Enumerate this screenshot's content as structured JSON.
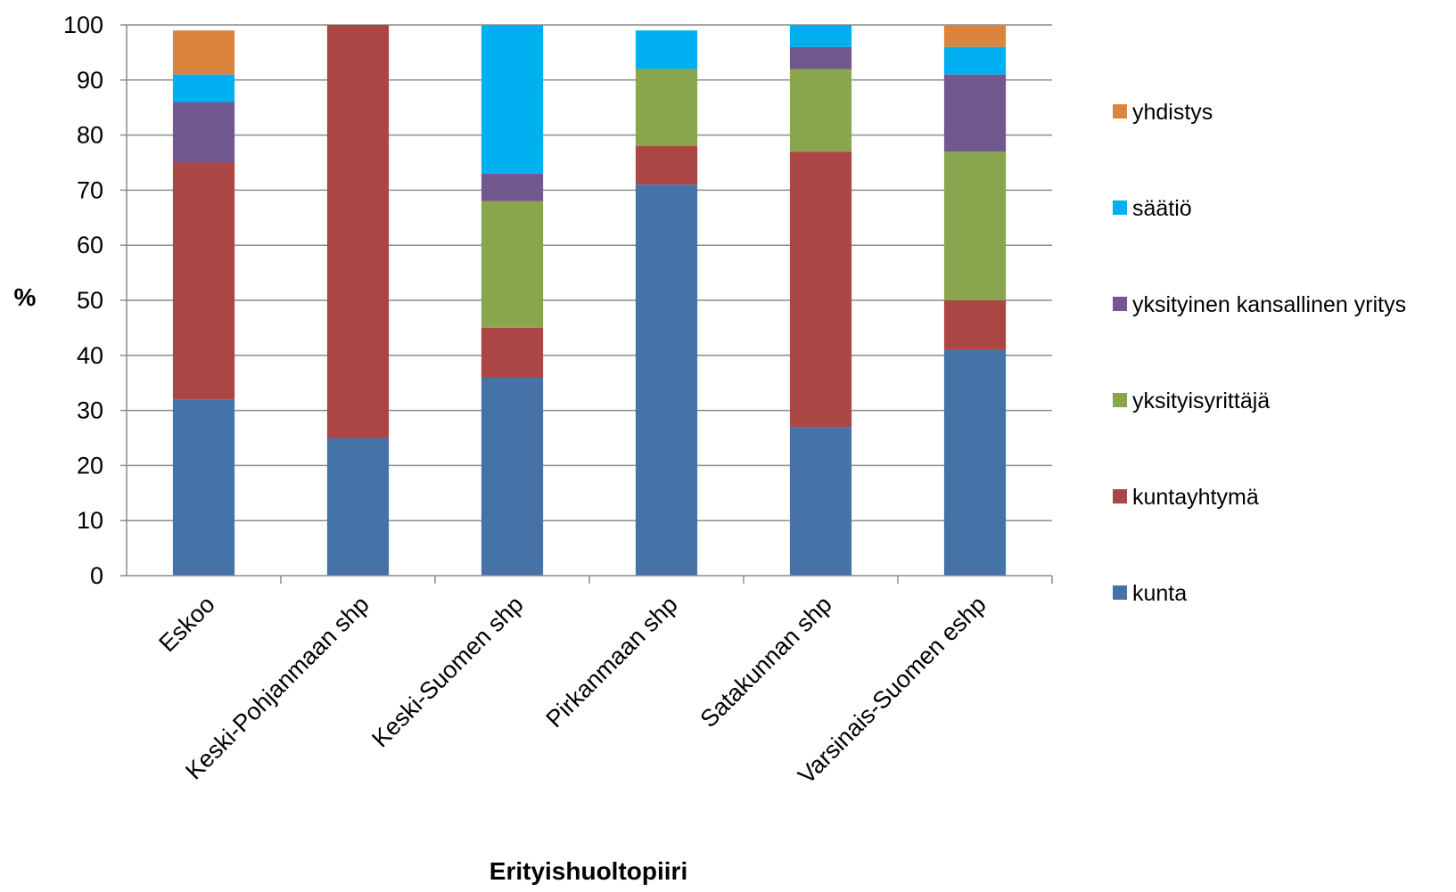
{
  "chart_data": {
    "type": "bar",
    "stacked": true,
    "xlabel": "Erityishuoltopiiri",
    "ylabel": "%",
    "ylim": [
      0,
      100
    ],
    "yticks": [
      "0",
      "10",
      "20",
      "30",
      "40",
      "50",
      "60",
      "70",
      "80",
      "90",
      "100"
    ],
    "grid": true,
    "legend_position": "right",
    "categories": [
      "Eskoo",
      "Keski-Pohjanmaan shp",
      "Keski-Suomen shp",
      "Pirkanmaan shp",
      "Satakunnan shp",
      "Varsinais-Suomen eshp"
    ],
    "series": [
      {
        "name": "kunta",
        "color": "#4572A7",
        "values": [
          32,
          25,
          36,
          71,
          27,
          41
        ]
      },
      {
        "name": "kuntayhtymä",
        "color": "#AA4643",
        "values": [
          43,
          75,
          9,
          7,
          50,
          9
        ]
      },
      {
        "name": "yksityisyrittäjä",
        "color": "#89A54E",
        "values": [
          0,
          0,
          23,
          14,
          15,
          27
        ]
      },
      {
        "name": "yksityinen kansallinen yritys",
        "color": "#71588F",
        "values": [
          11,
          0,
          5,
          0,
          4,
          14
        ]
      },
      {
        "name": "säätiö",
        "color": "#00B0F0",
        "values": [
          5,
          0,
          27,
          7,
          4,
          5
        ]
      },
      {
        "name": "yhdistys",
        "color": "#DB843D",
        "values": [
          8,
          0,
          0,
          0,
          0,
          4
        ]
      }
    ]
  }
}
